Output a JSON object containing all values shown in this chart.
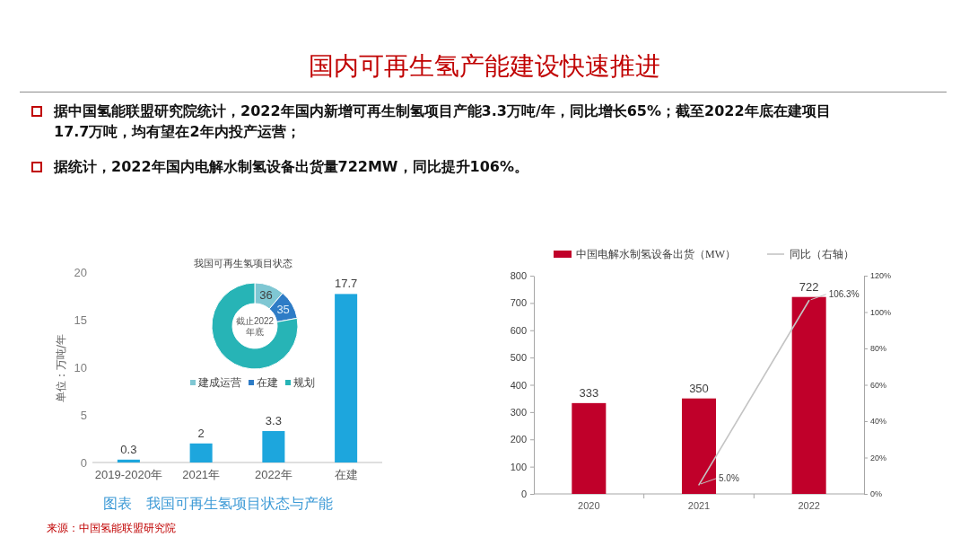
{
  "chart_data": [
    {
      "type": "other",
      "title": "国内可再生氢产能建设快速推进",
      "annotations": [
        "据中国氢能联盟研究院统计，2022年国内新增可再生制氢项目产能3.3万吨/年，同比增长65%；截至2022年底在建项目17.7万吨，均有望在2年内投产运营；",
        "据统计，2022年国内电解水制氢设备出货量722MW，同比提升106%。"
      ]
    },
    {
      "type": "bar",
      "title": "图表　我国可再生氢项目状态与产能",
      "ylabel": "单位：万吨/年",
      "categories": [
        "2019-2020年",
        "2021年",
        "2022年",
        "在建"
      ],
      "values": [
        0.3,
        2,
        3.3,
        17.7
      ],
      "color": "#1da6dd",
      "ylim": [
        0,
        20
      ],
      "yticks": [
        0,
        5,
        10,
        15,
        20
      ],
      "data_labels": true,
      "annotations": [
        "来源：中国氢能联盟研究院"
      ]
    },
    {
      "type": "donut",
      "title": "我国可再生氢项目状态",
      "categories": [
        "建成运营",
        "在建",
        "规划"
      ],
      "values": [
        36,
        35,
        250
      ],
      "colors": [
        "#7fc7d3",
        "#2e7cc6",
        "#27b4b6"
      ],
      "value_labels": [
        "36",
        "35",
        null
      ],
      "annotations": [
        "截止2022年底"
      ],
      "legend": "bottom"
    },
    {
      "type": "bar",
      "categories": [
        "2020",
        "2021",
        "2022"
      ],
      "series": [
        {
          "name": "中国电解水制氢设备出货（MW）",
          "color": "#c0002a",
          "values": [
            333,
            350,
            722
          ],
          "value_labels": [
            "333",
            "350",
            "722"
          ]
        },
        {
          "type": "line",
          "name": "同比（右轴）",
          "axis": "y2",
          "color": "#c4c4c4",
          "values": [
            null,
            5.0,
            106.3
          ],
          "value_labels": [
            null,
            "5.0%",
            "106.3%"
          ]
        }
      ],
      "ylim": [
        0,
        800
      ],
      "yticks": [
        0,
        100,
        200,
        300,
        400,
        500,
        600,
        700,
        800
      ],
      "y2lim": [
        0,
        120
      ],
      "y2ticks": [
        {
          "value": 0,
          "label": "0%"
        },
        {
          "value": 20,
          "label": "20%"
        },
        {
          "value": 40,
          "label": "40%"
        },
        {
          "value": 60,
          "label": "60%"
        },
        {
          "value": 80,
          "label": "80%"
        },
        {
          "value": 100,
          "label": "100%"
        },
        {
          "value": 120,
          "label": "120%"
        }
      ],
      "legend": "top"
    }
  ]
}
